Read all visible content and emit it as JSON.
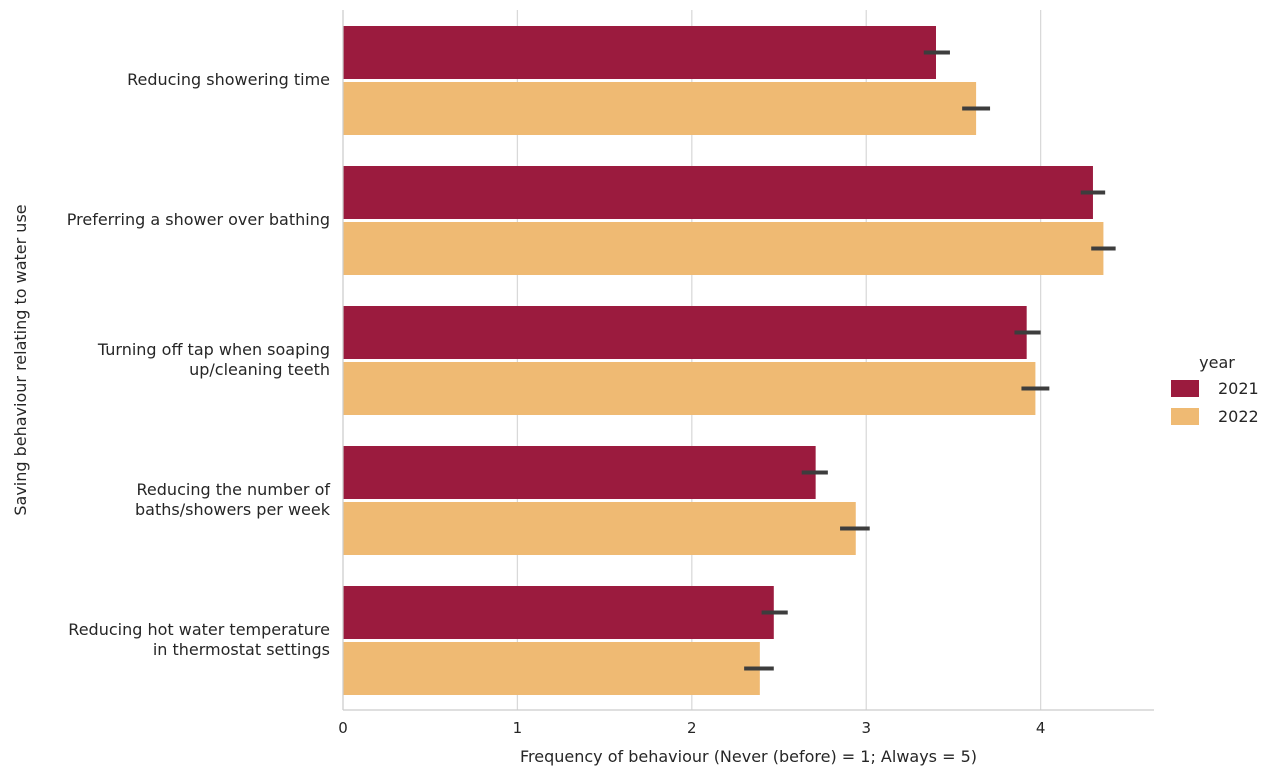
{
  "chart_data": {
    "type": "bar",
    "orientation": "horizontal",
    "title": "",
    "xlabel": "Frequency of behaviour (Never (before) = 1; Always = 5)",
    "ylabel": "Saving behaviour relating to water use",
    "xlim": [
      0,
      4.65
    ],
    "xticks": [
      0,
      1,
      2,
      3,
      4
    ],
    "grid": "vertical",
    "categories": [
      [
        "Reducing showering time"
      ],
      [
        "Preferring a shower over bathing"
      ],
      [
        "Turning off tap when soaping",
        "up/cleaning teeth"
      ],
      [
        "Reducing the number of",
        "baths/showers per week"
      ],
      [
        "Reducing hot water temperature",
        "in thermostat settings"
      ]
    ],
    "legend": {
      "title": "year",
      "placement": "right"
    },
    "series": [
      {
        "name": "2021",
        "color": "#9b1b3e",
        "values": [
          3.4,
          4.3,
          3.92,
          2.71,
          2.47
        ],
        "ci": [
          [
            3.33,
            3.48
          ],
          [
            4.23,
            4.37
          ],
          [
            3.85,
            4.0
          ],
          [
            2.63,
            2.78
          ],
          [
            2.4,
            2.55
          ]
        ]
      },
      {
        "name": "2022",
        "color": "#efba73",
        "values": [
          3.63,
          4.36,
          3.97,
          2.94,
          2.39
        ],
        "ci": [
          [
            3.55,
            3.71
          ],
          [
            4.29,
            4.43
          ],
          [
            3.89,
            4.05
          ],
          [
            2.85,
            3.02
          ],
          [
            2.3,
            2.47
          ]
        ]
      }
    ],
    "error_bar_color": "#3d3d3d"
  }
}
